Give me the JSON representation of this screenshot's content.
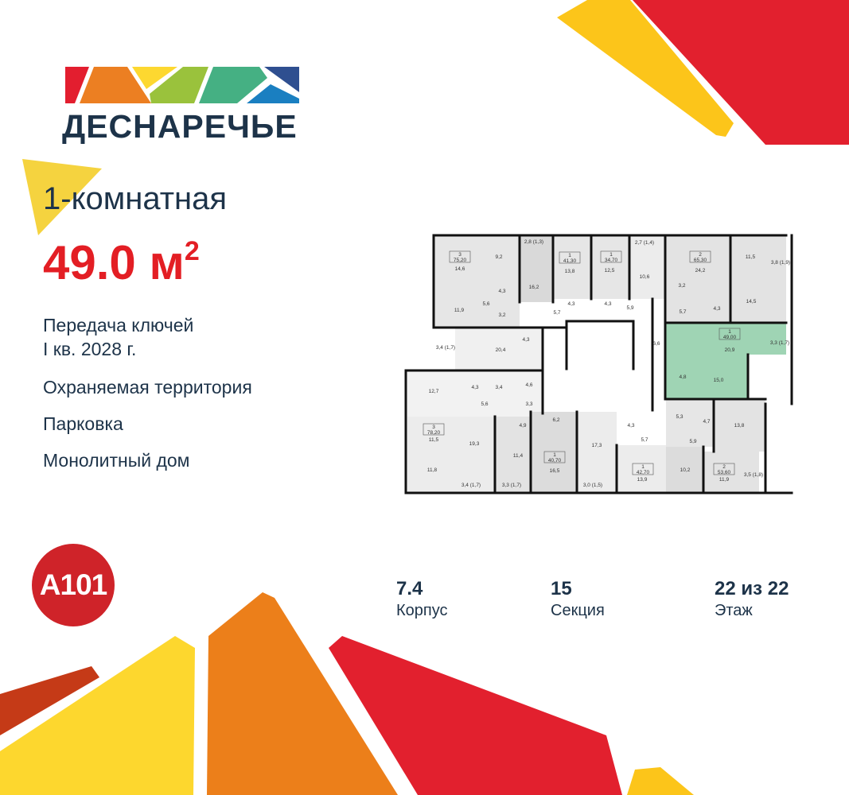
{
  "brand": {
    "name": "ДЕСНАРЕЧЬЕ",
    "developer": "A101",
    "logo_colors": [
      "#e31e2f",
      "#ec7f22",
      "#fdd830",
      "#9ac23c",
      "#45b083",
      "#1a7fc1",
      "#2f4f90"
    ]
  },
  "listing": {
    "rooms": "1-комнатная",
    "area_value": "49.0 м",
    "area_sup": "2",
    "features": [
      "Передача ключей",
      "I кв. 2028 г.",
      "Охраняемая территория",
      "Парковка",
      "Монолитный дом"
    ]
  },
  "stats": [
    {
      "value": "7.4",
      "label": "Корпус"
    },
    {
      "value": "15",
      "label": "Секция"
    },
    {
      "value": "22 из 22",
      "label": "Этаж"
    }
  ],
  "colors": {
    "accent_red": "#e31e24",
    "text_navy": "#1d3349",
    "highlight_green": "#9fd4b4",
    "room_gray": "#e3e3e3"
  },
  "floor_plan": {
    "apartments": [
      {
        "rooms": "3",
        "area": "75,20"
      },
      {
        "rooms": "1",
        "area": "41,30"
      },
      {
        "rooms": "1",
        "area": "34,70"
      },
      {
        "rooms": "2",
        "area": "65,30"
      },
      {
        "rooms": "1",
        "area": "49,00",
        "selected": true
      },
      {
        "rooms": "3",
        "area": "78,20"
      },
      {
        "rooms": "1",
        "area": "40,70"
      },
      {
        "rooms": "1",
        "area": "42,70"
      },
      {
        "rooms": "2",
        "area": "53,60"
      }
    ],
    "room_areas": [
      "14,6",
      "9,2",
      "4,3",
      "5,6",
      "11,9",
      "3,2",
      "16,2",
      "2,8 (1,3)",
      "13,8",
      "4,3",
      "5,7",
      "20,4",
      "4,3",
      "3,4 (1,7)",
      "12,5",
      "2,7 (1,4)",
      "10,6",
      "4,3",
      "5,9",
      "24,2",
      "3,2",
      "5,7",
      "4,3",
      "11,5",
      "3,8 (1,9)",
      "14,5",
      "20,9",
      "6,6",
      "3,3 (1,7)",
      "4,8",
      "15,0",
      "12,7",
      "4,3",
      "3,4",
      "4,6",
      "5,6",
      "3,3",
      "11,5",
      "19,3",
      "4,9",
      "6,2",
      "11,4",
      "16,5",
      "11,8",
      "3,4 (1,7)",
      "3,3 (1,7)",
      "3,0 (1,5)",
      "17,3",
      "4,3",
      "5,7",
      "13,9",
      "10,2",
      "5,3",
      "4,7",
      "5,9",
      "13,8",
      "11,9",
      "3,5 (1,8)"
    ]
  }
}
